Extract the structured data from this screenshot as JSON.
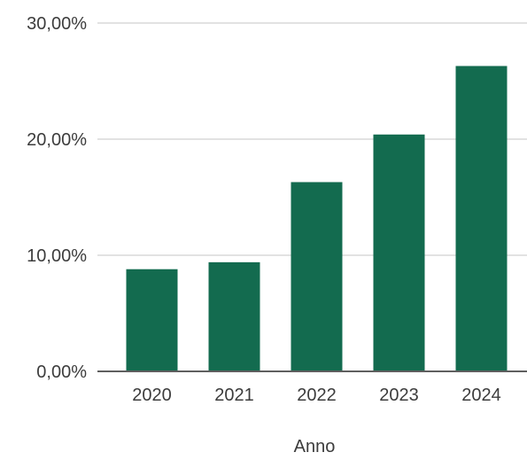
{
  "chart_data": {
    "type": "bar",
    "categories": [
      "2020",
      "2021",
      "2022",
      "2023",
      "2024"
    ],
    "series": [
      {
        "values": [
          8.8,
          9.4,
          16.3,
          20.4,
          26.3
        ]
      }
    ],
    "title": "",
    "xlabel": "Anno",
    "ylabel": "",
    "ylim": [
      0,
      30
    ],
    "yticks": [
      0,
      10,
      20,
      30
    ],
    "ytick_labels": [
      "0,00%",
      "10,00%",
      "20,00%",
      "30,00%"
    ],
    "grid": true,
    "legend": "none",
    "colors": {
      "bar": "#136b4f",
      "grid": "#d9d9d9",
      "axis": "#5f5f5f",
      "text": "#3c3c3c"
    }
  }
}
